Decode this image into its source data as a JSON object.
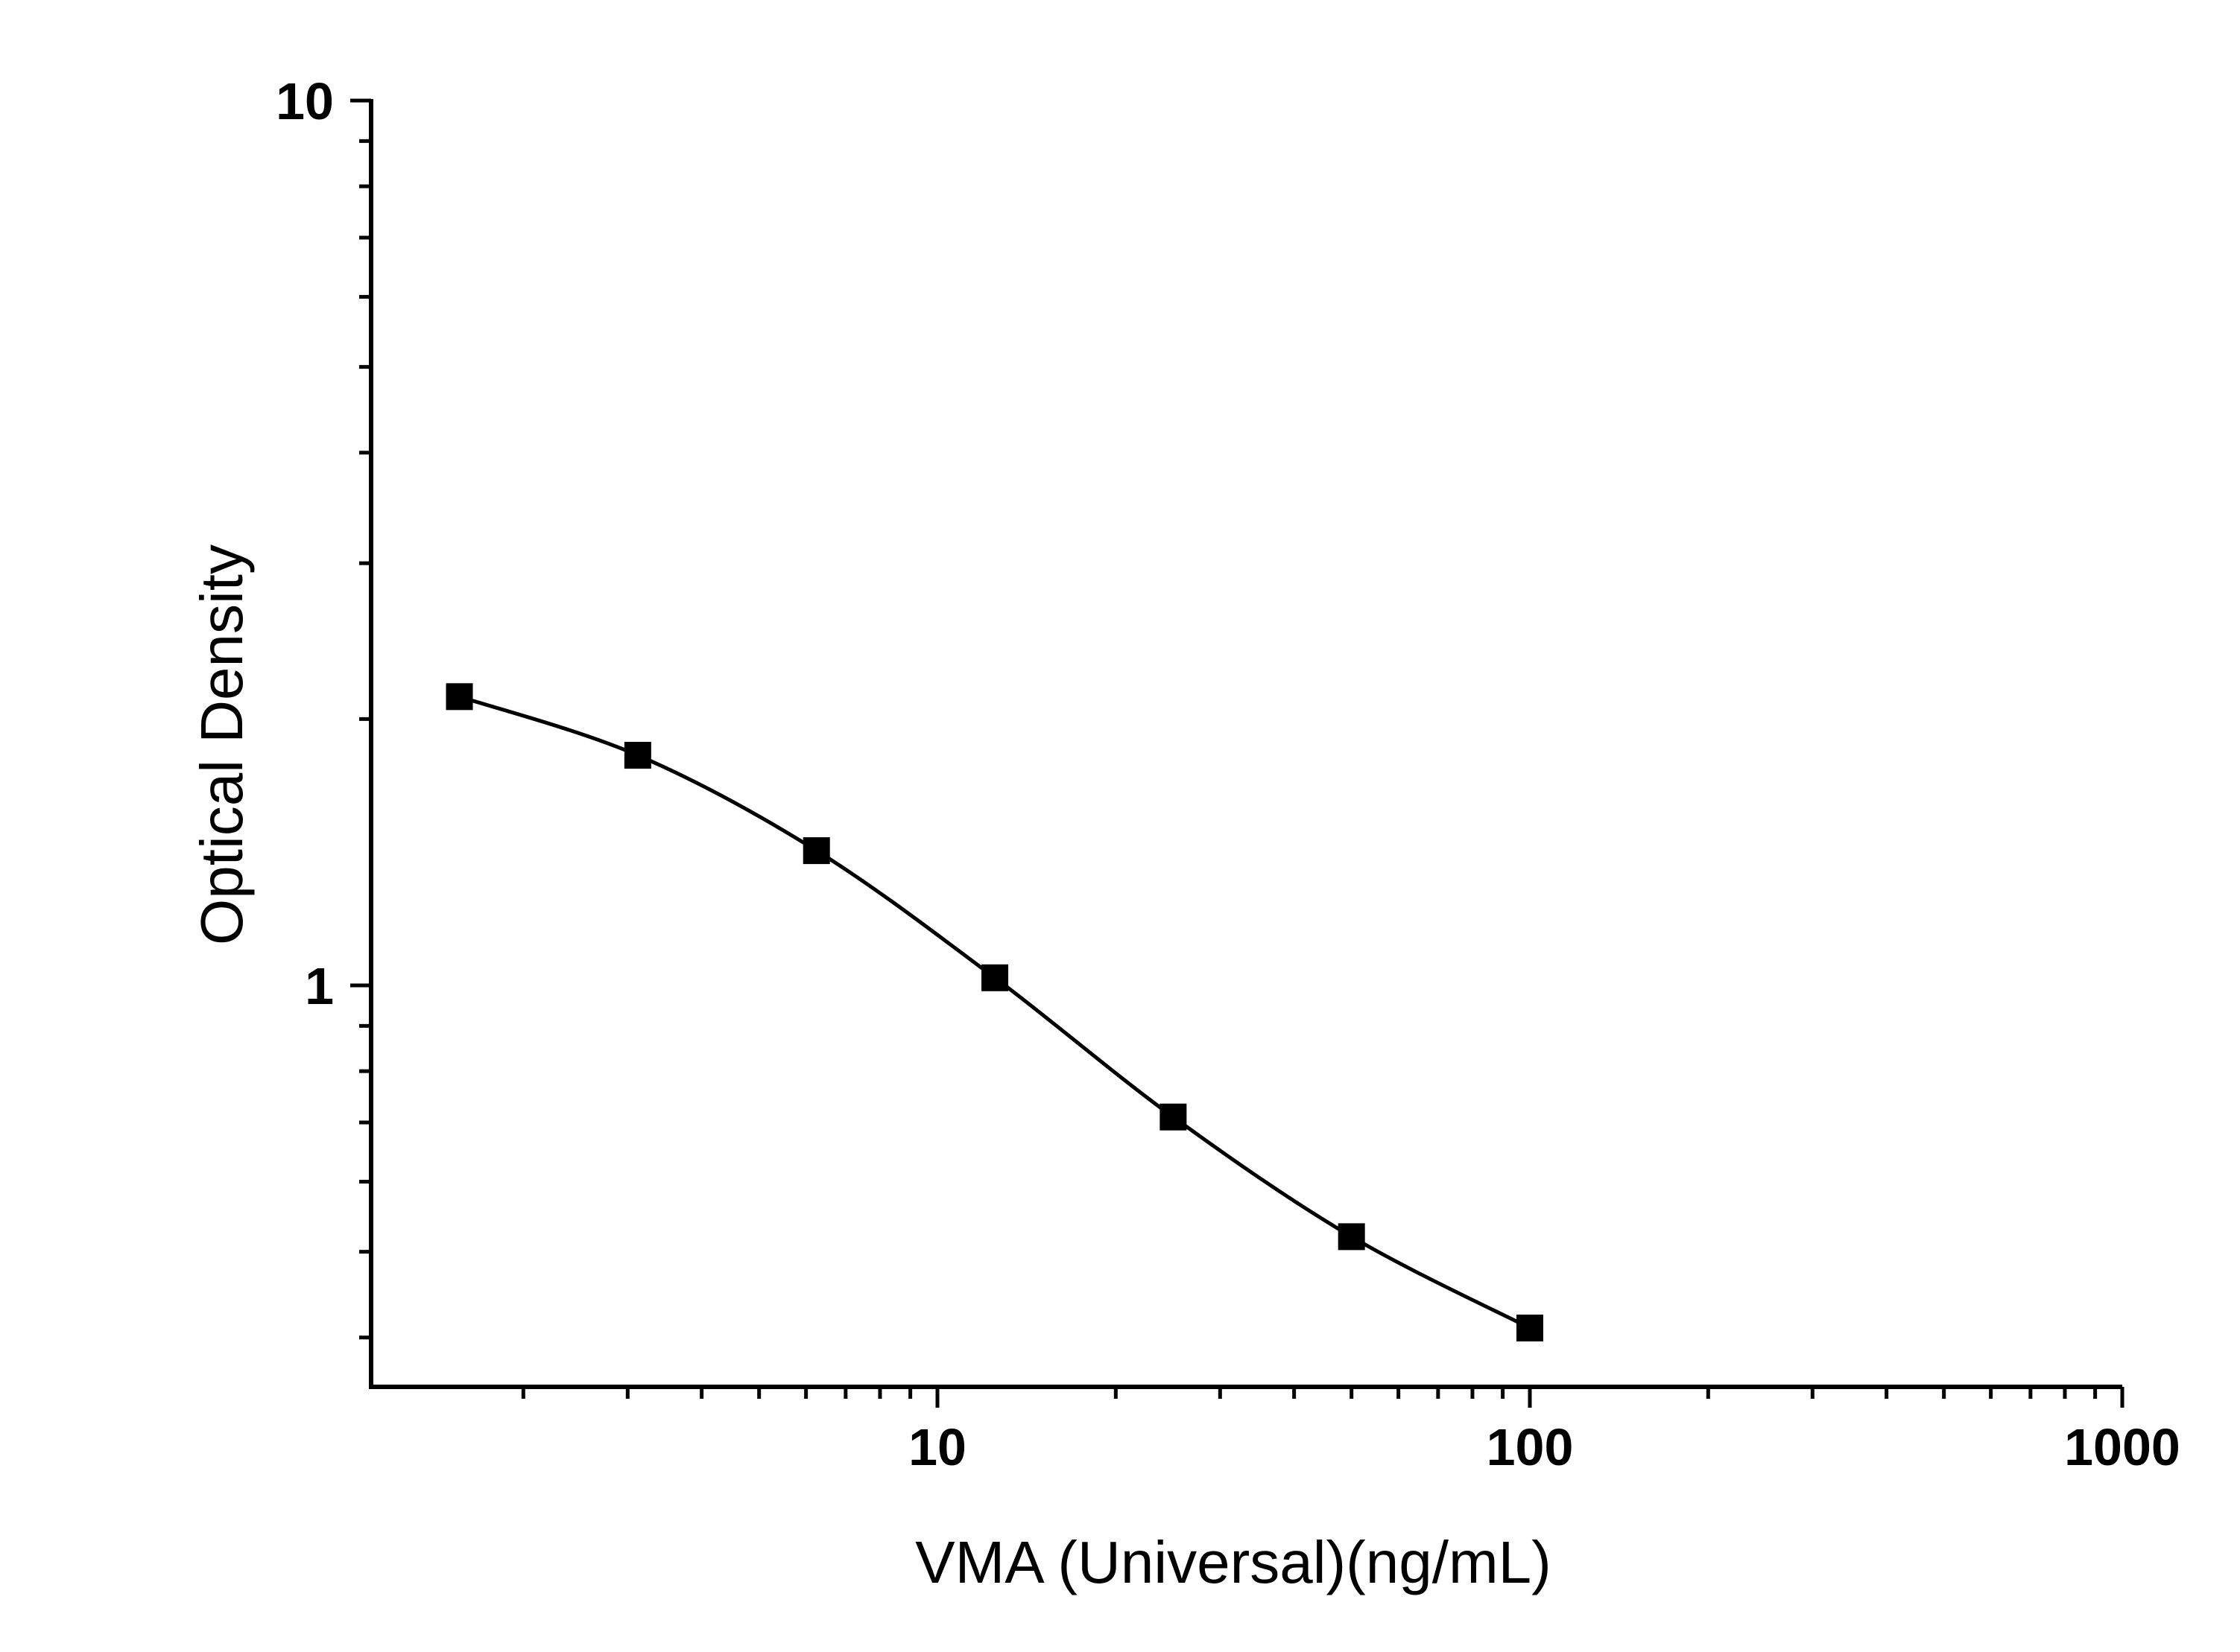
{
  "chart_data": {
    "type": "line",
    "xlabel": "VMA (Universal)(ng/mL)",
    "ylabel": "Optical Density",
    "x_scale": "log",
    "y_scale": "log",
    "xlim": [
      1.5,
      1000
    ],
    "ylim": [
      0.35,
      10
    ],
    "x_ticks": [
      {
        "value": 10,
        "label": "10"
      },
      {
        "value": 100,
        "label": "100"
      },
      {
        "value": 1000,
        "label": "1000"
      }
    ],
    "y_ticks": [
      {
        "value": 1,
        "label": "1"
      },
      {
        "value": 10,
        "label": "10"
      }
    ],
    "series": [
      {
        "marker": "square",
        "color": "#000000",
        "curve": "smooth",
        "x": [
          1.56,
          3.12,
          6.25,
          12.5,
          25,
          50,
          100
        ],
        "y": [
          2.12,
          1.82,
          1.42,
          1.02,
          0.71,
          0.52,
          0.41
        ]
      }
    ],
    "grid": false,
    "legend": "none"
  }
}
